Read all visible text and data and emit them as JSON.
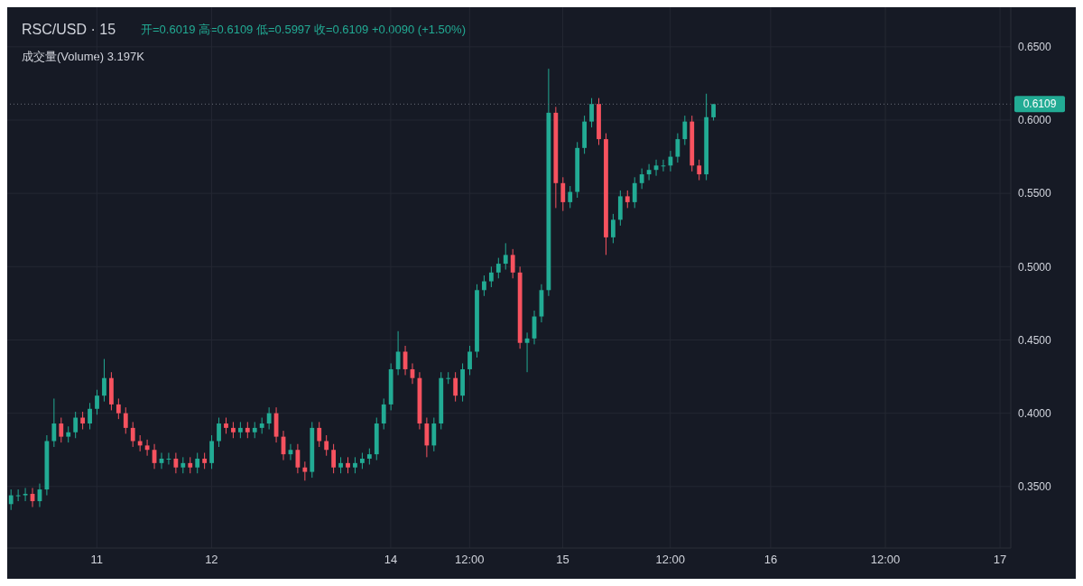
{
  "chart_data": {
    "type": "candlestick",
    "title": "RSC/USD · 15",
    "annotations": [
      "开=0.6019 高=0.6109 低=0.5997 收=0.6109 +0.0090 (+1.50%)",
      "成交量(Volume) 3.197K"
    ],
    "categories": [
      null,
      null,
      null,
      null,
      null,
      null,
      null,
      null,
      null,
      null,
      null,
      null,
      "11",
      null,
      null,
      null,
      null,
      null,
      null,
      null,
      null,
      null,
      null,
      null,
      null,
      null,
      null,
      null,
      "12",
      null,
      null,
      null,
      null,
      null,
      null,
      null,
      null,
      null,
      null,
      null,
      null,
      null,
      null,
      null,
      null,
      null,
      null,
      null,
      null,
      null,
      null,
      null,
      null,
      "14",
      null,
      null,
      null,
      null,
      null,
      null,
      null,
      null,
      null,
      null,
      "12:00",
      null,
      null,
      null,
      null,
      null,
      null,
      null,
      null,
      null,
      null,
      null,
      null,
      "15",
      null,
      null,
      null,
      null,
      null,
      null,
      null,
      null,
      null,
      null,
      null,
      null,
      null,
      null,
      "12:00",
      null,
      null,
      null,
      null,
      null,
      null,
      null,
      null,
      null,
      null,
      null,
      null,
      null,
      "16",
      null,
      null,
      null,
      null,
      null,
      null,
      null,
      null,
      null,
      null,
      null,
      null,
      null,
      null,
      null,
      "12:00",
      null,
      null,
      null,
      null,
      null,
      null,
      null,
      null,
      null,
      null,
      null,
      null,
      null,
      null,
      null,
      "17",
      null
    ],
    "ohlc": [
      [
        0.338,
        0.348,
        0.334,
        0.344
      ],
      [
        0.344,
        0.348,
        0.34,
        0.344
      ],
      [
        0.344,
        0.349,
        0.34,
        0.345
      ],
      [
        0.345,
        0.349,
        0.336,
        0.34
      ],
      [
        0.34,
        0.352,
        0.336,
        0.348
      ],
      [
        0.348,
        0.385,
        0.344,
        0.381
      ],
      [
        0.381,
        0.41,
        0.377,
        0.393
      ],
      [
        0.393,
        0.397,
        0.38,
        0.384
      ],
      [
        0.384,
        0.391,
        0.38,
        0.387
      ],
      [
        0.387,
        0.401,
        0.383,
        0.397
      ],
      [
        0.397,
        0.401,
        0.389,
        0.393
      ],
      [
        0.393,
        0.407,
        0.389,
        0.403
      ],
      [
        0.403,
        0.416,
        0.399,
        0.412
      ],
      [
        0.412,
        0.437,
        0.408,
        0.424
      ],
      [
        0.424,
        0.428,
        0.402,
        0.406
      ],
      [
        0.406,
        0.41,
        0.396,
        0.4
      ],
      [
        0.4,
        0.404,
        0.386,
        0.39
      ],
      [
        0.39,
        0.394,
        0.377,
        0.381
      ],
      [
        0.381,
        0.385,
        0.374,
        0.378
      ],
      [
        0.378,
        0.382,
        0.371,
        0.375
      ],
      [
        0.375,
        0.379,
        0.362,
        0.366
      ],
      [
        0.366,
        0.373,
        0.362,
        0.369
      ],
      [
        0.369,
        0.373,
        0.365,
        0.369
      ],
      [
        0.369,
        0.373,
        0.359,
        0.363
      ],
      [
        0.363,
        0.37,
        0.359,
        0.366
      ],
      [
        0.366,
        0.37,
        0.359,
        0.363
      ],
      [
        0.363,
        0.373,
        0.359,
        0.369
      ],
      [
        0.369,
        0.373,
        0.362,
        0.366
      ],
      [
        0.366,
        0.385,
        0.362,
        0.381
      ],
      [
        0.381,
        0.397,
        0.377,
        0.393
      ],
      [
        0.393,
        0.397,
        0.386,
        0.39
      ],
      [
        0.39,
        0.394,
        0.383,
        0.387
      ],
      [
        0.387,
        0.394,
        0.383,
        0.39
      ],
      [
        0.39,
        0.394,
        0.383,
        0.387
      ],
      [
        0.387,
        0.394,
        0.383,
        0.39
      ],
      [
        0.39,
        0.397,
        0.386,
        0.393
      ],
      [
        0.393,
        0.404,
        0.389,
        0.4
      ],
      [
        0.4,
        0.404,
        0.38,
        0.384
      ],
      [
        0.384,
        0.388,
        0.368,
        0.372
      ],
      [
        0.372,
        0.379,
        0.368,
        0.375
      ],
      [
        0.375,
        0.379,
        0.359,
        0.363
      ],
      [
        0.363,
        0.367,
        0.354,
        0.36
      ],
      [
        0.36,
        0.394,
        0.356,
        0.39
      ],
      [
        0.39,
        0.394,
        0.377,
        0.381
      ],
      [
        0.381,
        0.385,
        0.371,
        0.375
      ],
      [
        0.375,
        0.379,
        0.359,
        0.363
      ],
      [
        0.363,
        0.37,
        0.359,
        0.366
      ],
      [
        0.366,
        0.37,
        0.359,
        0.363
      ],
      [
        0.363,
        0.37,
        0.359,
        0.366
      ],
      [
        0.366,
        0.373,
        0.362,
        0.369
      ],
      [
        0.369,
        0.376,
        0.365,
        0.372
      ],
      [
        0.372,
        0.397,
        0.368,
        0.393
      ],
      [
        0.393,
        0.41,
        0.389,
        0.406
      ],
      [
        0.406,
        0.434,
        0.402,
        0.43
      ],
      [
        0.43,
        0.456,
        0.426,
        0.442
      ],
      [
        0.442,
        0.446,
        0.426,
        0.43
      ],
      [
        0.43,
        0.434,
        0.42,
        0.424
      ],
      [
        0.424,
        0.428,
        0.389,
        0.393
      ],
      [
        0.393,
        0.397,
        0.37,
        0.378
      ],
      [
        0.378,
        0.397,
        0.374,
        0.393
      ],
      [
        0.393,
        0.428,
        0.389,
        0.424
      ],
      [
        0.424,
        0.428,
        0.42,
        0.424
      ],
      [
        0.424,
        0.428,
        0.408,
        0.412
      ],
      [
        0.412,
        0.434,
        0.408,
        0.43
      ],
      [
        0.43,
        0.446,
        0.426,
        0.442
      ],
      [
        0.442,
        0.488,
        0.438,
        0.484
      ],
      [
        0.484,
        0.494,
        0.48,
        0.49
      ],
      [
        0.49,
        0.5,
        0.486,
        0.496
      ],
      [
        0.496,
        0.506,
        0.492,
        0.502
      ],
      [
        0.502,
        0.516,
        0.498,
        0.508
      ],
      [
        0.508,
        0.512,
        0.492,
        0.496
      ],
      [
        0.496,
        0.5,
        0.444,
        0.448
      ],
      [
        0.448,
        0.455,
        0.428,
        0.451
      ],
      [
        0.451,
        0.47,
        0.447,
        0.466
      ],
      [
        0.466,
        0.488,
        0.462,
        0.484
      ],
      [
        0.484,
        0.635,
        0.48,
        0.605
      ],
      [
        0.605,
        0.609,
        0.54,
        0.557
      ],
      [
        0.557,
        0.561,
        0.538,
        0.544
      ],
      [
        0.544,
        0.555,
        0.54,
        0.551
      ],
      [
        0.551,
        0.585,
        0.547,
        0.581
      ],
      [
        0.581,
        0.603,
        0.577,
        0.599
      ],
      [
        0.599,
        0.615,
        0.595,
        0.611
      ],
      [
        0.611,
        0.615,
        0.583,
        0.587
      ],
      [
        0.587,
        0.591,
        0.508,
        0.52
      ],
      [
        0.52,
        0.536,
        0.516,
        0.532
      ],
      [
        0.532,
        0.552,
        0.528,
        0.548
      ],
      [
        0.548,
        0.552,
        0.54,
        0.544
      ],
      [
        0.544,
        0.561,
        0.54,
        0.557
      ],
      [
        0.557,
        0.567,
        0.553,
        0.563
      ],
      [
        0.563,
        0.57,
        0.559,
        0.566
      ],
      [
        0.566,
        0.573,
        0.562,
        0.569
      ],
      [
        0.569,
        0.573,
        0.565,
        0.569
      ],
      [
        0.569,
        0.579,
        0.565,
        0.575
      ],
      [
        0.575,
        0.591,
        0.571,
        0.587
      ],
      [
        0.587,
        0.603,
        0.583,
        0.599
      ],
      [
        0.599,
        0.603,
        0.565,
        0.569
      ],
      [
        0.569,
        0.573,
        0.559,
        0.563
      ],
      [
        0.563,
        0.618,
        0.559,
        0.602
      ],
      [
        0.6019,
        0.6109,
        0.5997,
        0.6109
      ],
      null,
      null,
      null,
      null,
      null,
      null,
      null,
      null,
      null,
      null,
      null,
      null,
      null,
      null,
      null,
      null,
      null,
      null,
      null,
      null,
      null,
      null,
      null,
      null,
      null,
      null,
      null,
      null,
      null,
      null,
      null,
      null,
      null,
      null,
      null,
      null,
      null,
      null,
      null,
      null,
      null
    ],
    "colors": [
      "#22ab94",
      "#22ab94",
      "#22ab94",
      "#f7525f",
      "#22ab94",
      "#22ab94",
      "#22ab94",
      "#f7525f",
      "#22ab94",
      "#22ab94",
      "#f7525f",
      "#22ab94",
      "#22ab94",
      "#22ab94",
      "#f7525f",
      "#f7525f",
      "#f7525f",
      "#f7525f",
      "#f7525f",
      "#f7525f",
      "#f7525f",
      "#22ab94",
      "#22ab94",
      "#f7525f",
      "#22ab94",
      "#f7525f",
      "#22ab94",
      "#f7525f",
      "#22ab94",
      "#22ab94",
      "#f7525f",
      "#f7525f",
      "#22ab94",
      "#f7525f",
      "#22ab94",
      "#22ab94",
      "#22ab94",
      "#f7525f",
      "#f7525f",
      "#22ab94",
      "#f7525f",
      "#f7525f",
      "#22ab94",
      "#f7525f",
      "#f7525f",
      "#f7525f",
      "#22ab94",
      "#f7525f",
      "#22ab94",
      "#22ab94",
      "#22ab94",
      "#22ab94",
      "#22ab94",
      "#22ab94",
      "#22ab94",
      "#f7525f",
      "#f7525f",
      "#f7525f",
      "#f7525f",
      "#22ab94",
      "#22ab94",
      "#22ab94",
      "#f7525f",
      "#22ab94",
      "#22ab94",
      "#22ab94",
      "#22ab94",
      "#22ab94",
      "#22ab94",
      "#22ab94",
      "#f7525f",
      "#f7525f",
      "#22ab94",
      "#22ab94",
      "#22ab94",
      "#22ab94",
      "#f7525f",
      "#f7525f",
      "#22ab94",
      "#22ab94",
      "#22ab94",
      "#22ab94",
      "#f7525f",
      "#f7525f",
      "#22ab94",
      "#22ab94",
      "#f7525f",
      "#22ab94",
      "#22ab94",
      "#22ab94",
      "#22ab94",
      "#22ab94",
      "#22ab94",
      "#22ab94",
      "#22ab94",
      "#f7525f",
      "#f7525f",
      "#22ab94",
      "#22ab94",
      null,
      null,
      null,
      null,
      null,
      null,
      null,
      null,
      null,
      null,
      null,
      null,
      null,
      null,
      null,
      null,
      null,
      null,
      null,
      null,
      null,
      null,
      null,
      null,
      null,
      null,
      null,
      null,
      null,
      null,
      null,
      null,
      null,
      null,
      null,
      null,
      null,
      null,
      null,
      null,
      null
    ],
    "ylim": [
      0.308,
      0.677
    ],
    "yticks": [
      {
        "value": 0.35,
        "label": "0.3500"
      },
      {
        "value": 0.4,
        "label": "0.4000"
      },
      {
        "value": 0.45,
        "label": "0.4500"
      },
      {
        "value": 0.5,
        "label": "0.5000"
      },
      {
        "value": 0.55,
        "label": "0.5500"
      },
      {
        "value": 0.6,
        "label": "0.6000"
      },
      {
        "value": 0.65,
        "label": "0.6500"
      }
    ],
    "ref_lines": [
      {
        "axis": "y",
        "value": 0.6109,
        "label": "0.6109",
        "color": "#6a6d78",
        "line_style": "dotted"
      }
    ],
    "grid": true
  }
}
